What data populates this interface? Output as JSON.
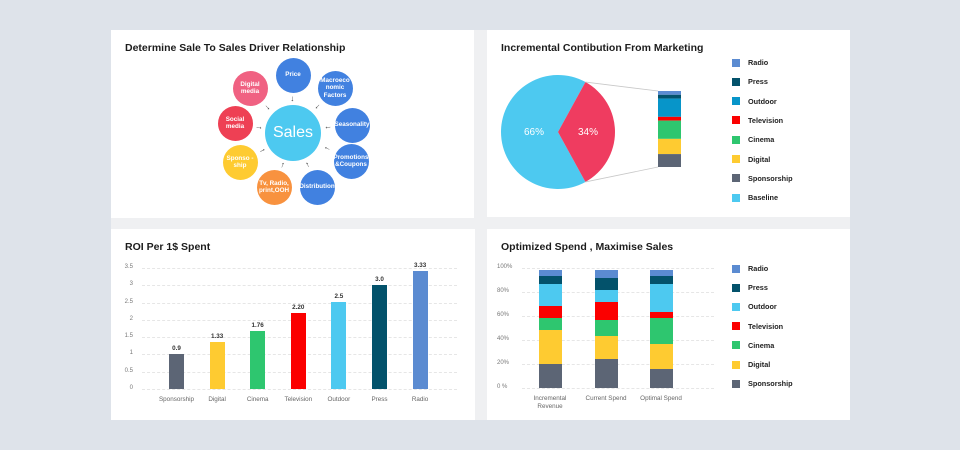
{
  "colors": {
    "background": "#dee3ea",
    "card": "#ffffff",
    "radio": "#5b8bd1",
    "press": "#03526b",
    "outdoor_pie": "#0795c9",
    "outdoor": "#4dc9f0",
    "television": "#fb0000",
    "cinema": "#2ec66f",
    "digital": "#fecb31",
    "sponsorship": "#5c6575",
    "baseline": "#4dc9f0",
    "marketing_slice": "#ef3c60"
  },
  "diagram": {
    "title": "Determine Sale To Sales Driver Relationship",
    "center": {
      "label": "Sales",
      "color": "#4dc9f0"
    },
    "nodes": [
      {
        "label": "Price",
        "color": "#4181e0"
      },
      {
        "label": "Macroeco nomic Factors",
        "color": "#4181e0"
      },
      {
        "label": "Seasonality",
        "color": "#4181e0"
      },
      {
        "label": "Promotions &Coupons",
        "color": "#4181e0"
      },
      {
        "label": "Distribution",
        "color": "#4181e0"
      },
      {
        "label": "Tv, Radio, print,OOH",
        "color": "#f8923f"
      },
      {
        "label": "Sponso -ship",
        "color": "#fecb31"
      },
      {
        "label": "Social media",
        "color": "#ee4054"
      },
      {
        "label": "Digital media",
        "color": "#f06182"
      }
    ]
  },
  "pie": {
    "title": "Incremental Contibution From Marketing",
    "legend": [
      "Radio",
      "Press",
      "Outdoor",
      "Television",
      "Cinema",
      "Digital",
      "Sponsorship",
      "Baseline"
    ]
  },
  "roi": {
    "title": "ROI Per 1$ Spent"
  },
  "stack": {
    "title": "Optimized Spend , Maximise Sales",
    "legend": [
      "Radio",
      "Press",
      "Outdoor",
      "Television",
      "Cinema",
      "Digital",
      "Sponsorship"
    ]
  },
  "chart_data": [
    {
      "type": "diagram",
      "title": "Determine Sale To Sales Driver Relationship",
      "center": "Sales",
      "drivers": [
        "Price",
        "Macroeconomic Factors",
        "Seasonality",
        "Promotions &Coupons",
        "Distribution",
        "Tv, Radio, print,OOH",
        "Sponsoship",
        "Social media",
        "Digital media"
      ]
    },
    {
      "type": "pie",
      "title": "Incremental Contibution From Marketing",
      "categories": [
        "Baseline",
        "Marketing"
      ],
      "values": [
        66,
        34
      ],
      "value_labels": [
        "66%",
        "34%"
      ],
      "breakdown": {
        "type": "stacked-bar",
        "categories": [
          "Radio",
          "Press",
          "Outdoor",
          "Television",
          "Cinema",
          "Digital",
          "Sponsorship"
        ],
        "values": [
          5,
          5,
          24,
          5,
          24,
          20,
          17
        ]
      },
      "legend": [
        "Radio",
        "Press",
        "Outdoor",
        "Television",
        "Cinema",
        "Digital",
        "Sponsorship",
        "Baseline"
      ],
      "legend_position": "right"
    },
    {
      "type": "bar",
      "title": "ROI Per 1$ Spent",
      "categories": [
        "Sponsorship",
        "Digital",
        "Cinema",
        "Television",
        "Outdoor",
        "Press",
        "Radio"
      ],
      "values": [
        0.9,
        1.33,
        1.76,
        2.2,
        2.5,
        3.0,
        3.33
      ],
      "value_labels": [
        "0.9",
        "1.33",
        "1.76",
        "2.20",
        "2.5",
        "3.0",
        "3.33"
      ],
      "yticks": [
        "0",
        "0.5",
        "1",
        "1.5",
        "2",
        "2.5",
        "3",
        "3.5"
      ],
      "ylim": [
        0,
        3.5
      ],
      "grid": true,
      "xlabel": "",
      "ylabel": ""
    },
    {
      "type": "bar",
      "stacked": true,
      "title": "Optimized Spend , Maximise Sales",
      "categories": [
        "Incremental Revenue",
        "Current Spend",
        "Optimal Spend"
      ],
      "series": [
        {
          "name": "Sponsorship",
          "values": [
            20,
            24,
            16
          ]
        },
        {
          "name": "Digital",
          "values": [
            28,
            19,
            21
          ]
        },
        {
          "name": "Cinema",
          "values": [
            10,
            14,
            21
          ]
        },
        {
          "name": "Television",
          "values": [
            10,
            15,
            5
          ]
        },
        {
          "name": "Outdoor",
          "values": [
            19,
            10,
            24
          ]
        },
        {
          "name": "Press",
          "values": [
            6,
            10,
            6
          ]
        },
        {
          "name": "Radio",
          "values": [
            5,
            6,
            5
          ]
        }
      ],
      "yticks": [
        "0 %",
        "20%",
        "40%",
        "60%",
        "80%",
        "100%"
      ],
      "ylim": [
        0,
        100
      ],
      "grid": true,
      "legend_position": "right"
    }
  ]
}
